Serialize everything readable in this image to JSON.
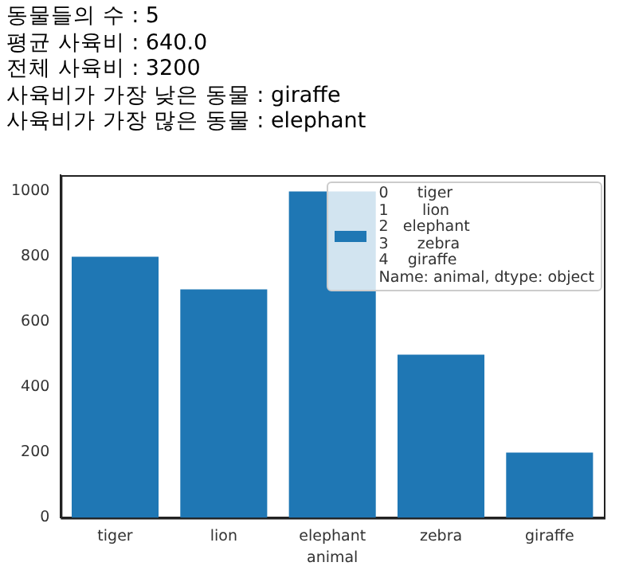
{
  "chart_data": {
    "type": "bar",
    "annotations": [
      "동물들의 수 : 5",
      "평균 사육비 : 640.0",
      "전체 사육비 : 3200",
      "사육비가 가장 낮은 동물 : giraffe",
      "사육비가 가장 많은 동물 : elephant"
    ],
    "xlabel": "animal",
    "categories": [
      "tiger",
      "lion",
      "elephant",
      "zebra",
      "giraffe"
    ],
    "series": [
      {
        "name": "0      tiger\n1       lion\n2   elephant\n3      zebra\n4    giraffe\nName: animal, dtype: object",
        "color": "#1f77b4",
        "values": [
          800,
          700,
          1000,
          500,
          200
        ]
      }
    ],
    "ylim": [
      0,
      1050
    ],
    "yticks": [
      0,
      200,
      400,
      600,
      800,
      1000
    ],
    "grid": false,
    "legend": "top right"
  }
}
